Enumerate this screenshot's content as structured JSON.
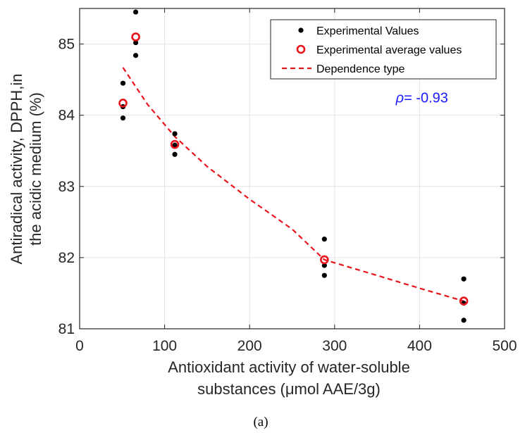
{
  "chart_data": {
    "type": "scatter",
    "x_label_lines": [
      "Antioxidant activity of water-soluble",
      "substances (μmol AAE/3g)"
    ],
    "y_label_lines": [
      "Antiradical activity, DPPH,in",
      "the acidic medium (%)"
    ],
    "xlim": [
      0,
      500
    ],
    "ylim": [
      81,
      85.5
    ],
    "x_ticks": [
      0,
      100,
      200,
      300,
      400,
      500
    ],
    "y_ticks": [
      81,
      82,
      83,
      84,
      85
    ],
    "x_tick_labels": [
      "0",
      "100",
      "200",
      "300",
      "400",
      "500"
    ],
    "y_tick_labels": [
      "81",
      "82",
      "83",
      "84",
      "85"
    ],
    "grid": true,
    "legend_position": "top-right",
    "series": [
      {
        "name": "Experimental Values",
        "style": "dot",
        "color": "#000000",
        "points": [
          {
            "x": 51,
            "y": 84.45
          },
          {
            "x": 51,
            "y": 84.12
          },
          {
            "x": 51,
            "y": 83.96
          },
          {
            "x": 66,
            "y": 85.45
          },
          {
            "x": 66,
            "y": 85.02
          },
          {
            "x": 66,
            "y": 84.84
          },
          {
            "x": 112,
            "y": 83.74
          },
          {
            "x": 112,
            "y": 83.58
          },
          {
            "x": 112,
            "y": 83.45
          },
          {
            "x": 288,
            "y": 82.26
          },
          {
            "x": 288,
            "y": 81.89
          },
          {
            "x": 288,
            "y": 81.75
          },
          {
            "x": 452,
            "y": 81.7
          },
          {
            "x": 452,
            "y": 81.36
          },
          {
            "x": 452,
            "y": 81.12
          }
        ]
      },
      {
        "name": "Experimental average values",
        "style": "open-circle",
        "color": "#e8141b",
        "points": [
          {
            "x": 51,
            "y": 84.17
          },
          {
            "x": 66,
            "y": 85.1
          },
          {
            "x": 112,
            "y": 83.59
          },
          {
            "x": 288,
            "y": 81.97
          },
          {
            "x": 452,
            "y": 81.39
          }
        ]
      },
      {
        "name": "Dependence type",
        "style": "dashed-line",
        "color": "#e8141b",
        "points": [
          {
            "x": 51,
            "y": 84.67
          },
          {
            "x": 80,
            "y": 84.15
          },
          {
            "x": 112,
            "y": 83.7
          },
          {
            "x": 150,
            "y": 83.28
          },
          {
            "x": 200,
            "y": 82.82
          },
          {
            "x": 250,
            "y": 82.4
          },
          {
            "x": 288,
            "y": 81.97
          },
          {
            "x": 350,
            "y": 81.75
          },
          {
            "x": 400,
            "y": 81.57
          },
          {
            "x": 452,
            "y": 81.39
          }
        ]
      }
    ],
    "annotation": {
      "symbol": "ρ",
      "text": "= -0.93",
      "x": 372,
      "y": 84.18,
      "color": "#1a1aff"
    }
  },
  "caption": "(a)"
}
